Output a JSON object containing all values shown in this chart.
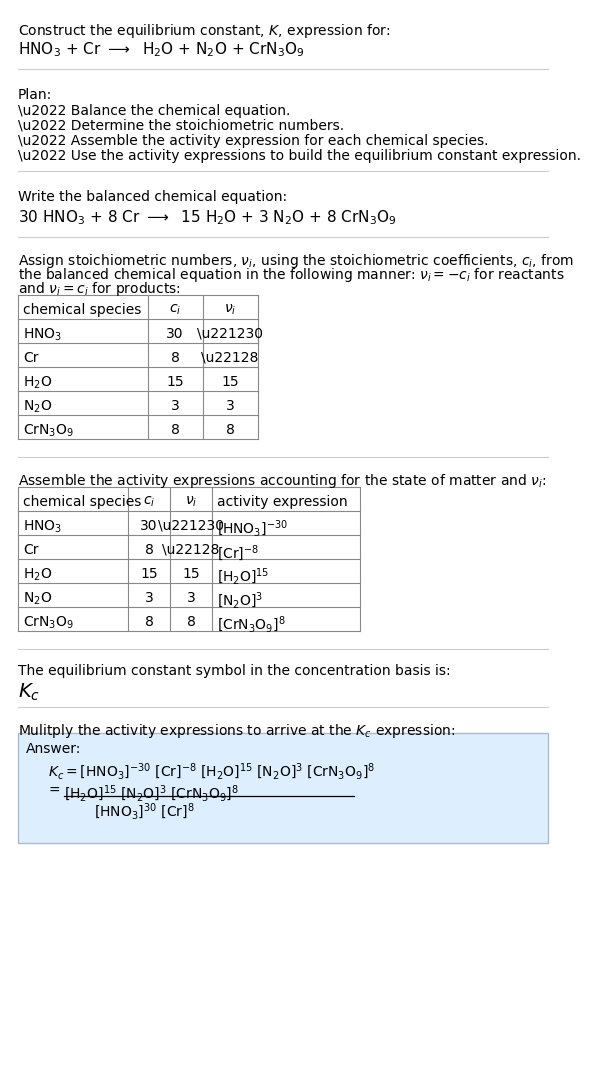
{
  "bg_color": "#ffffff",
  "text_color": "#000000",
  "title_line": "Construct the equilibrium constant, $K$, expression for:",
  "reaction_unbalanced": "HNO$_3$ + Cr $\\longrightarrow$  H$_2$O + N$_2$O + CrN$_3$O$_9$",
  "plan_header": "Plan:",
  "plan_items": [
    "\\u2022 Balance the chemical equation.",
    "\\u2022 Determine the stoichiometric numbers.",
    "\\u2022 Assemble the activity expression for each chemical species.",
    "\\u2022 Use the activity expressions to build the equilibrium constant expression."
  ],
  "balanced_header": "Write the balanced chemical equation:",
  "balanced_eq": "30 HNO$_3$ + 8 Cr $\\longrightarrow$  15 H$_2$O + 3 N$_2$O + 8 CrN$_3$O$_9$",
  "stoich_line1": "Assign stoichiometric numbers, $\\nu_i$, using the stoichiometric coefficients, $c_i$, from",
  "stoich_line2": "the balanced chemical equation in the following manner: $\\nu_i = -c_i$ for reactants",
  "stoich_line3": "and $\\nu_i = c_i$ for products:",
  "table1_headers": [
    "chemical species",
    "$c_i$",
    "$\\nu_i$"
  ],
  "table1_rows": [
    [
      "HNO$_3$",
      "30",
      "\\u221230"
    ],
    [
      "Cr",
      "8",
      "\\u22128"
    ],
    [
      "H$_2$O",
      "15",
      "15"
    ],
    [
      "N$_2$O",
      "3",
      "3"
    ],
    [
      "CrN$_3$O$_9$",
      "8",
      "8"
    ]
  ],
  "activity_header": "Assemble the activity expressions accounting for the state of matter and $\\nu_i$:",
  "table2_headers": [
    "chemical species",
    "$c_i$",
    "$\\nu_i$",
    "activity expression"
  ],
  "table2_rows": [
    [
      "HNO$_3$",
      "30",
      "\\u221230",
      "[HNO$_3$]$^{-30}$"
    ],
    [
      "Cr",
      "8",
      "\\u22128",
      "[Cr]$^{-8}$"
    ],
    [
      "H$_2$O",
      "15",
      "15",
      "[H$_2$O]$^{15}$"
    ],
    [
      "N$_2$O",
      "3",
      "3",
      "[N$_2$O]$^3$"
    ],
    [
      "CrN$_3$O$_9$",
      "8",
      "8",
      "[CrN$_3$O$_9$]$^8$"
    ]
  ],
  "kc_text": "The equilibrium constant symbol in the concentration basis is:",
  "kc_symbol": "$K_c$",
  "multiply_text": "Mulitply the activity expressions to arrive at the $K_c$ expression:",
  "answer_label": "Answer:",
  "answer_box_color": "#ddeeff",
  "answer_box_edge": "#aabbcc",
  "sep_color": "#cccccc",
  "table_line_color": "#888888",
  "font_size": 10,
  "font_size_chem": 11
}
